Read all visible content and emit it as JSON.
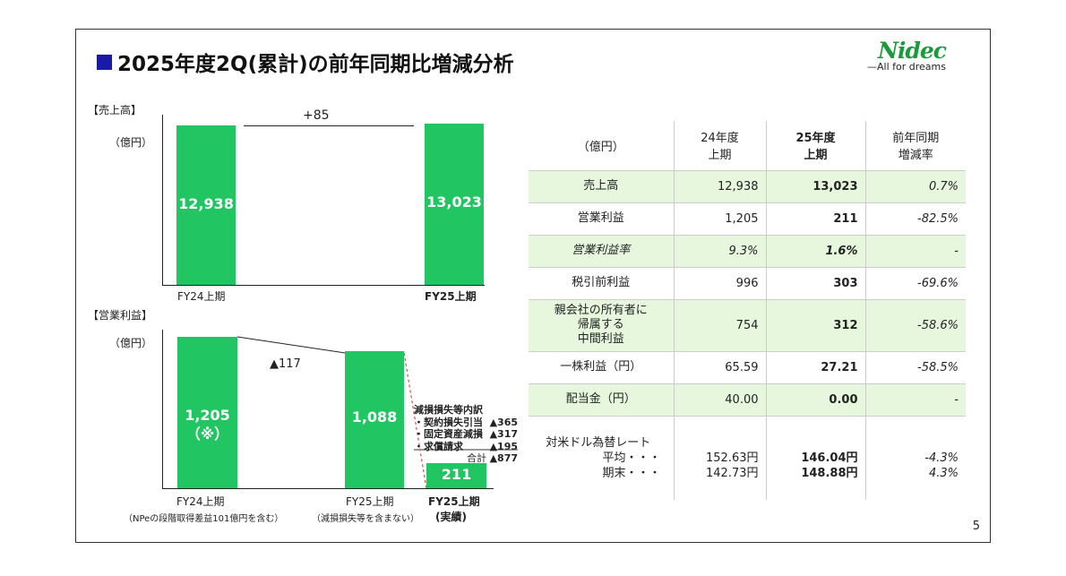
{
  "title": "2025年度2Q(累計)の前年同期比増減分析",
  "logo": {
    "brand": "Nidec",
    "tagline": "—All for dreams"
  },
  "page_number": "5",
  "colors": {
    "bar": "#21c561",
    "title_square": "#1a1aa8",
    "highlight_row": "#e6f7de"
  },
  "sales_chart": {
    "section": "【売上高】",
    "unit": "（億円）",
    "diff_label": "+85",
    "bars": [
      {
        "label": "FY24上期",
        "value": 12938,
        "value_label": "12,938"
      },
      {
        "label": "FY25上期",
        "value": 13023,
        "value_label": "13,023"
      }
    ]
  },
  "op_chart": {
    "section": "【営業利益】",
    "unit": "（億円）",
    "diff_label": "▲117",
    "bars": [
      {
        "label": "FY24上期",
        "sub": "（NPeの段階取得差益101億円を含む）",
        "value": 1205,
        "value_label": "1,205",
        "note": "（※）"
      },
      {
        "label": "FY25上期",
        "sub": "（減損損失等を含まない）",
        "value": 1088,
        "value_label": "1,088"
      },
      {
        "label": "FY25上期",
        "sub": "(実績)",
        "value": 211,
        "value_label": "211"
      }
    ],
    "breakdown": {
      "title": "減損損失等内訳",
      "items": [
        {
          "name": "・契約損失引当",
          "value": "▲365"
        },
        {
          "name": "・固定資産減損",
          "value": "▲317"
        },
        {
          "name": "・求償請求",
          "value": "▲195"
        }
      ],
      "total_label": "合計",
      "total": "▲877"
    }
  },
  "table": {
    "headers": [
      "（億円）",
      "24年度\n上期",
      "25年度\n上期",
      "前年同期\n増減率"
    ],
    "rows": [
      [
        "売上高",
        "12,938",
        "13,023",
        "0.7%"
      ],
      [
        "営業利益",
        "1,205",
        "211",
        "-82.5%"
      ],
      [
        "営業利益率",
        "9.3%",
        "1.6%",
        "-"
      ],
      [
        "税引前利益",
        "996",
        "303",
        "-69.6%"
      ],
      [
        "親会社の所有者に\n帰属する\n中間利益",
        "754",
        "312",
        "-58.6%"
      ],
      [
        "一株利益（円）",
        "65.59",
        "27.21",
        "-58.5%"
      ],
      [
        "配当金（円）",
        "40.00",
        "0.00",
        "-"
      ]
    ],
    "fx": {
      "label": "対米ドル為替レート",
      "avg_label": "平均・・・",
      "end_label": "期末・・・",
      "avg": [
        "152.63円",
        "146.04円",
        "-4.3%"
      ],
      "end": [
        "142.73円",
        "148.88円",
        "4.3%"
      ]
    }
  }
}
